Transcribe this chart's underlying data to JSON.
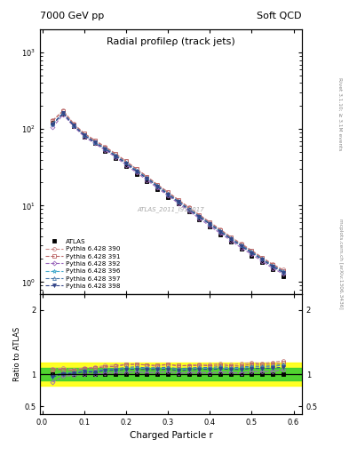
{
  "title": "Radial profileρ (track jets)",
  "header_left": "7000 GeV pp",
  "header_right": "Soft QCD",
  "xlabel": "Charged Particle r",
  "ylabel_ratio": "Ratio to ATLAS",
  "watermark": "ATLAS_2011_I919017",
  "right_label_top": "Rivet 3.1.10; ≥ 3.1M events",
  "right_label_bot": "mcplots.cern.ch [arXiv:1306.3436]",
  "r_values": [
    0.025,
    0.05,
    0.075,
    0.1,
    0.125,
    0.15,
    0.175,
    0.2,
    0.225,
    0.25,
    0.275,
    0.3,
    0.325,
    0.35,
    0.375,
    0.4,
    0.425,
    0.45,
    0.475,
    0.5,
    0.525,
    0.55,
    0.575
  ],
  "atlas_y": [
    120,
    160,
    110,
    80,
    65,
    52,
    42,
    33,
    26,
    21,
    16.5,
    13,
    10.5,
    8.3,
    6.6,
    5.3,
    4.2,
    3.4,
    2.75,
    2.2,
    1.8,
    1.45,
    1.2
  ],
  "atlas_yerr": [
    12,
    16,
    11,
    8,
    6.5,
    5.2,
    4.2,
    3.3,
    2.6,
    2.1,
    1.65,
    1.3,
    1.05,
    0.83,
    0.66,
    0.53,
    0.42,
    0.34,
    0.275,
    0.22,
    0.18,
    0.145,
    0.12
  ],
  "p390_y": [
    130,
    175,
    118,
    88,
    72,
    59,
    48,
    38,
    30,
    24,
    18.5,
    15,
    11.8,
    9.5,
    7.6,
    6.1,
    4.9,
    3.9,
    3.2,
    2.6,
    2.1,
    1.72,
    1.45
  ],
  "p391_y": [
    128,
    172,
    116,
    87,
    71,
    58,
    47,
    38,
    30,
    24,
    18.8,
    15,
    11.9,
    9.4,
    7.5,
    6.0,
    4.8,
    3.85,
    3.1,
    2.55,
    2.07,
    1.68,
    1.41
  ],
  "p392_y": [
    105,
    155,
    108,
    80,
    65,
    53,
    43,
    34,
    27,
    21.5,
    17,
    13.5,
    10.7,
    8.5,
    6.8,
    5.4,
    4.35,
    3.5,
    2.8,
    2.3,
    1.87,
    1.52,
    1.28
  ],
  "p396_y": [
    115,
    162,
    112,
    84,
    68,
    56,
    45,
    36,
    28.5,
    23,
    18,
    14.2,
    11.3,
    9.0,
    7.2,
    5.8,
    4.6,
    3.7,
    3.0,
    2.45,
    2.0,
    1.62,
    1.37
  ],
  "p397_y": [
    118,
    163,
    113,
    84,
    68,
    56,
    45.5,
    36.5,
    29,
    23,
    18.2,
    14.4,
    11.4,
    9.1,
    7.3,
    5.85,
    4.7,
    3.75,
    3.05,
    2.48,
    2.02,
    1.64,
    1.38
  ],
  "p398_y": [
    115,
    161,
    111,
    83,
    67,
    55,
    44.5,
    35.5,
    28,
    22.5,
    17.7,
    14.0,
    11.1,
    8.85,
    7.1,
    5.7,
    4.55,
    3.65,
    2.95,
    2.4,
    1.96,
    1.59,
    1.33
  ],
  "c390": "#cc8888",
  "c391": "#bb6666",
  "c392": "#9966bb",
  "c396": "#44aacc",
  "c397": "#4477aa",
  "c398": "#334488",
  "band_yellow": [
    0.82,
    1.18
  ],
  "band_green": [
    0.9,
    1.1
  ],
  "ylim_main": [
    0.7,
    2000
  ],
  "xlim": [
    -0.005,
    0.62
  ]
}
